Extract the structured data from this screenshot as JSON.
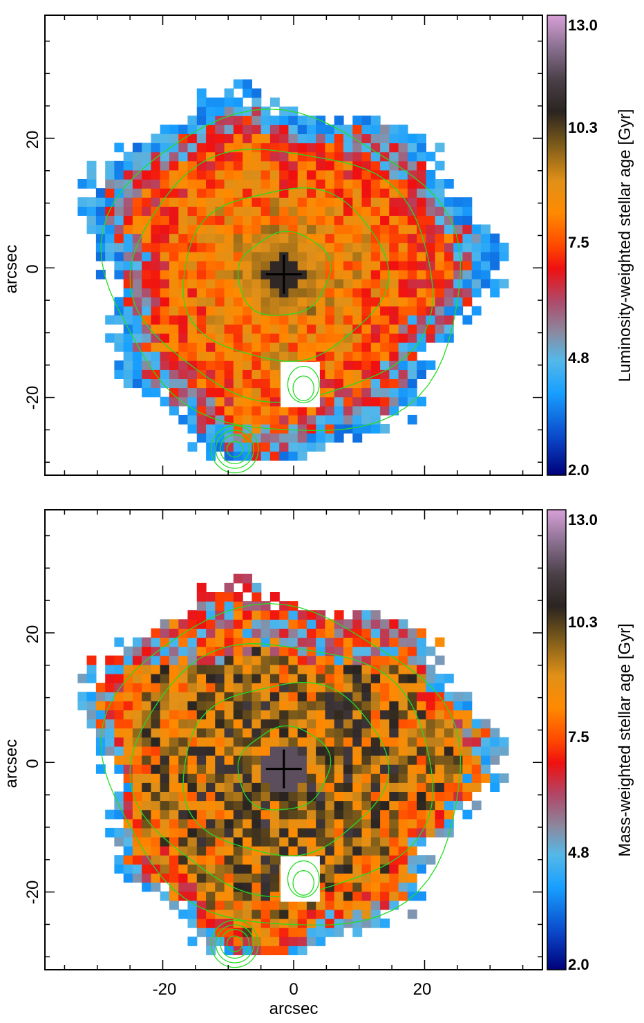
{
  "chart_data": [
    {
      "type": "heatmap",
      "panel": "top",
      "xlabel": "",
      "ylabel": "arcsec",
      "xlim": [
        -38,
        38
      ],
      "ylim": [
        -32,
        39
      ],
      "x_ticks": [
        -20,
        0,
        20
      ],
      "y_ticks": [
        -20,
        0,
        20
      ],
      "x_tick_labels": [],
      "y_tick_labels": [
        "-20",
        "0",
        "20"
      ],
      "colorbar": {
        "title": "Luminosity-weighted stellar age [Gyr]",
        "ticks": [
          2.0,
          4.8,
          7.5,
          10.3,
          13.0
        ],
        "tick_labels": [
          "2.0",
          "4.8",
          "7.5",
          "10.3",
          "13.0"
        ]
      },
      "center_marker": {
        "x": -1.5,
        "y": -1
      },
      "contour_radii": [
        7,
        15,
        22,
        27
      ],
      "masked_region": {
        "x": [
          -2,
          4
        ],
        "y": [
          -21.5,
          -14.5
        ]
      },
      "star_marker": {
        "x": -9,
        "y": -28
      }
    },
    {
      "type": "heatmap",
      "panel": "bottom",
      "xlabel": "arcsec",
      "ylabel": "arcsec",
      "xlim": [
        -38,
        38
      ],
      "ylim": [
        -32,
        39
      ],
      "x_ticks": [
        -20,
        0,
        20
      ],
      "y_ticks": [
        -20,
        0,
        20
      ],
      "x_tick_labels": [
        "-20",
        "0",
        "20"
      ],
      "y_tick_labels": [
        "-20",
        "0",
        "20"
      ],
      "colorbar": {
        "title": "Mass-weighted stellar age [Gyr]",
        "ticks": [
          2.0,
          4.8,
          7.5,
          10.3,
          13.0
        ],
        "tick_labels": [
          "2.0",
          "4.8",
          "7.5",
          "10.3",
          "13.0"
        ]
      },
      "center_marker": {
        "x": -1.5,
        "y": -1
      },
      "contour_radii": [
        7,
        15,
        22,
        27
      ],
      "masked_region": {
        "x": [
          -2,
          4
        ],
        "y": [
          -21.5,
          -14.5
        ]
      },
      "star_marker": {
        "x": -9,
        "y": -28
      }
    }
  ]
}
